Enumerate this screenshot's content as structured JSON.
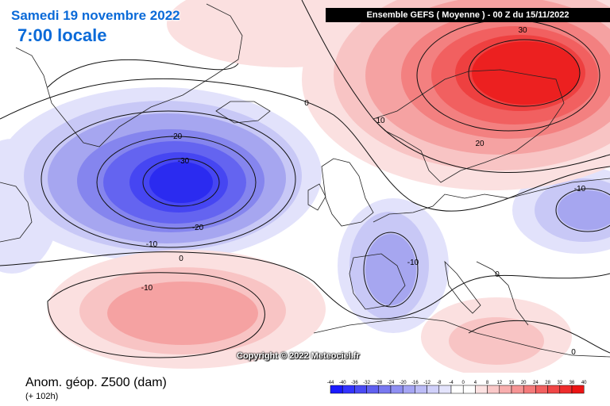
{
  "header": {
    "date": "Samedi 19 novembre 2022",
    "time": "7:00 locale",
    "run": "Ensemble GEFS  ( Moyenne )  -  00 Z du 15/11/2022"
  },
  "map": {
    "copyright": "Copyright © 2022 Meteociel.fr",
    "contour_labels": [
      {
        "id": "neg30",
        "text": "-30"
      },
      {
        "id": "neg20a",
        "text": "-20"
      },
      {
        "id": "neg20b",
        "text": "-20"
      },
      {
        "id": "neg10a",
        "text": "-10"
      },
      {
        "id": "neg10b",
        "text": "-10"
      },
      {
        "id": "neg10c",
        "text": "-10"
      },
      {
        "id": "neg10d",
        "text": "-10"
      },
      {
        "id": "zero_a",
        "text": "0"
      },
      {
        "id": "zero_b",
        "text": "0"
      },
      {
        "id": "zero_c",
        "text": "0"
      },
      {
        "id": "zero_d",
        "text": "0"
      },
      {
        "id": "pos10",
        "text": "10"
      },
      {
        "id": "pos20",
        "text": "20"
      },
      {
        "id": "pos30",
        "text": "30"
      }
    ]
  },
  "footer": {
    "field": "Anom. géop. Z500 (dam)",
    "lead": "(+ 102h)"
  },
  "legend": {
    "ticks": [
      "-44",
      "-40",
      "-36",
      "-32",
      "-28",
      "-24",
      "-20",
      "-16",
      "-12",
      "-8",
      "-4",
      "0",
      "4",
      "8",
      "12",
      "16",
      "20",
      "24",
      "28",
      "32",
      "36",
      "40"
    ],
    "colors": [
      "#1a1aff",
      "#3333ff",
      "#4a4af5",
      "#6060f0",
      "#7878f0",
      "#8f8ff2",
      "#a5a5f4",
      "#bcbcf7",
      "#d0d0fa",
      "#e4e4fc",
      "#ffffff",
      "#ffffff",
      "#fce2e2",
      "#fac8c8",
      "#f8aeae",
      "#f69494",
      "#f47a7a",
      "#f26060",
      "#f04646",
      "#ee2c2c",
      "#ec1414"
    ],
    "palette": {
      "neg30": "#2b2bf0",
      "neg25": "#4646f2",
      "neg20": "#6464f0",
      "neg15": "#8585ee",
      "neg10": "#a6a6f0",
      "neg5": "#c8c8f6",
      "neg2": "#e2e2fb",
      "pos2": "#fbe0e0",
      "pos5": "#f8c4c4",
      "pos10": "#f5a2a2",
      "pos15": "#f38080",
      "pos20": "#f16060",
      "pos25": "#ee4040",
      "pos30": "#ec2020"
    }
  }
}
